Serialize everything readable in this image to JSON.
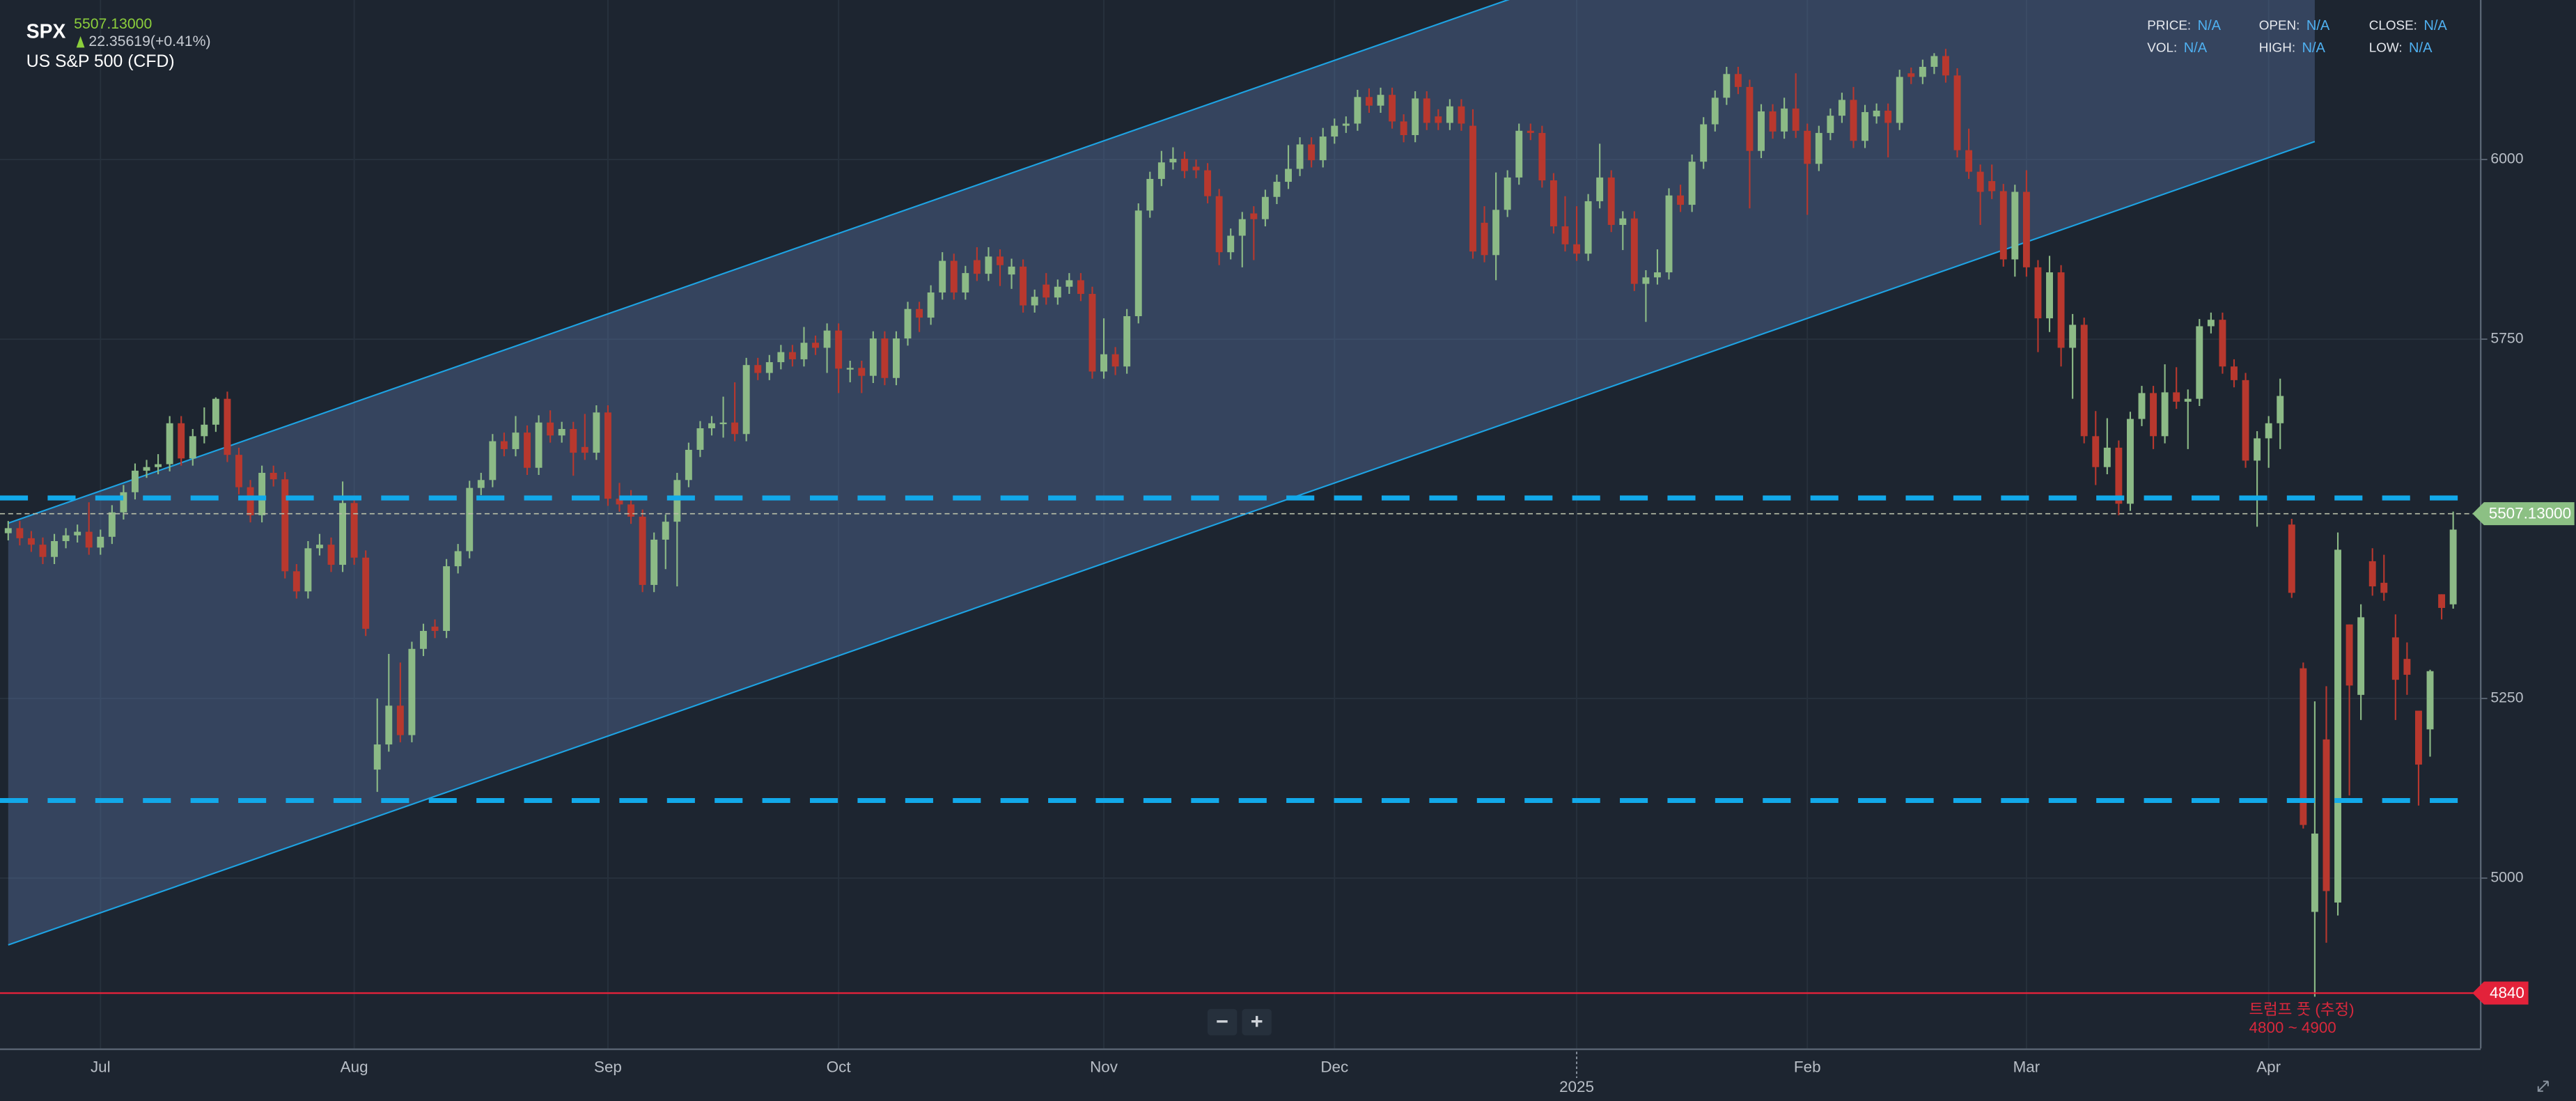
{
  "header": {
    "symbol": "SPX",
    "price": "5507.13000",
    "change": "22.35619(+0.41%)",
    "name": "US S&P 500 (CFD)"
  },
  "info": [
    {
      "label": "PRICE:",
      "value": "N/A"
    },
    {
      "label": "OPEN:",
      "value": "N/A"
    },
    {
      "label": "CLOSE:",
      "value": "N/A"
    },
    {
      "label": "VOL:",
      "value": "N/A"
    },
    {
      "label": "HIGH:",
      "value": "N/A"
    },
    {
      "label": "LOW:",
      "value": "N/A"
    }
  ],
  "zoom_controls": [
    "−",
    "+"
  ],
  "chart_data": {
    "type": "candlestick",
    "categories": [
      null,
      null,
      null,
      null,
      null,
      null,
      null,
      null,
      "Jul",
      null,
      null,
      null,
      null,
      null,
      null,
      null,
      null,
      null,
      null,
      null,
      null,
      null,
      null,
      null,
      null,
      null,
      null,
      null,
      null,
      null,
      "Aug",
      null,
      null,
      null,
      null,
      null,
      null,
      null,
      null,
      null,
      null,
      null,
      null,
      null,
      null,
      null,
      null,
      null,
      null,
      null,
      null,
      null,
      "Sep",
      null,
      null,
      null,
      null,
      null,
      null,
      null,
      null,
      null,
      null,
      null,
      null,
      null,
      null,
      null,
      null,
      null,
      null,
      null,
      "Oct",
      null,
      null,
      null,
      null,
      null,
      null,
      null,
      null,
      null,
      null,
      null,
      null,
      null,
      null,
      null,
      null,
      null,
      null,
      null,
      null,
      null,
      null,
      "Nov",
      null,
      null,
      null,
      null,
      null,
      null,
      null,
      null,
      null,
      null,
      null,
      null,
      null,
      null,
      null,
      null,
      null,
      null,
      null,
      "Dec",
      null,
      null,
      null,
      null,
      null,
      null,
      null,
      null,
      null,
      null,
      null,
      null,
      null,
      null,
      null,
      null,
      null,
      null,
      null,
      null,
      "2025",
      null,
      null,
      null,
      null,
      null,
      null,
      null,
      null,
      null,
      null,
      null,
      null,
      null,
      null,
      null,
      null,
      null,
      null,
      null,
      "Feb",
      null,
      null,
      null,
      null,
      null,
      null,
      null,
      null,
      null,
      null,
      null,
      null,
      null,
      null,
      null,
      null,
      null,
      null,
      "Mar",
      null,
      null,
      null,
      null,
      null,
      null,
      null,
      null,
      null,
      null,
      null,
      null,
      null,
      null,
      null,
      null,
      null,
      null,
      null,
      null,
      "Apr",
      null,
      null,
      null,
      null,
      null,
      null,
      null,
      null,
      null,
      null,
      null,
      null,
      null,
      null,
      null,
      null
    ],
    "open": [
      5480,
      5487,
      5473,
      5464,
      5447,
      5469,
      5477,
      5482,
      5460,
      5475,
      5509,
      5537,
      5567,
      5572,
      5576,
      5633,
      5584,
      5615,
      5631,
      5667,
      5589,
      5544,
      5505,
      5564,
      5555,
      5427,
      5399,
      5459,
      5464,
      5436,
      5522,
      5446,
      5151,
      5186,
      5240,
      5199,
      5319,
      5350,
      5344,
      5434,
      5455,
      5543,
      5554,
      5608,
      5597,
      5620,
      5571,
      5634,
      5616,
      5625,
      5600,
      5592,
      5648,
      5528,
      5520,
      5503,
      5408,
      5471,
      5496,
      5554,
      5596,
      5626,
      5633,
      5634,
      5618,
      5714,
      5703,
      5718,
      5732,
      5722,
      5745,
      5738,
      5762,
      5709,
      5710,
      5699,
      5751,
      5696,
      5751,
      5792,
      5780,
      5815,
      5859,
      5815,
      5860,
      5841,
      5865,
      5840,
      5851,
      5797,
      5826,
      5808,
      5823,
      5832,
      5813,
      5705,
      5729,
      5712,
      5782,
      5929,
      5973,
      5996,
      6001,
      5990,
      5985,
      5949,
      5871,
      5894,
      5925,
      5917,
      5948,
      5969,
      5987,
      6021,
      5999,
      6032,
      6047,
      6050,
      6087,
      6075,
      6090,
      6053,
      6034,
      6085,
      6060,
      6051,
      6074,
      6047,
      5912,
      5867,
      5930,
      5975,
      6040,
      6037,
      5971,
      5907,
      5882,
      5869,
      5942,
      5975,
      5909,
      5918,
      5827,
      5836,
      5843,
      5950,
      5937,
      5997,
      6049,
      6086,
      6119,
      6101,
      6012,
      6067,
      6039,
      6071,
      6040,
      5994,
      6037,
      6061,
      6083,
      6026,
      6060,
      6068,
      6051,
      6120,
      6115,
      6129,
      6144,
      6117,
      6013,
      5983,
      5970,
      5956,
      5861,
      5955,
      5850,
      5779,
      5843,
      5738,
      5770,
      5615,
      5572,
      5599,
      5521,
      5639,
      5675,
      5615,
      5676,
      5663,
      5667,
      5768,
      5777,
      5712,
      5693,
      5581,
      5612,
      5633,
      5492,
      5292,
      4953,
      5193,
      4966,
      5353,
      5255,
      5441,
      5411,
      5335,
      5305,
      5233,
      5207,
      5395,
      5381
    ],
    "high": [
      5497,
      5497,
      5483,
      5474,
      5479,
      5487,
      5492,
      5523,
      5485,
      5519,
      5547,
      5577,
      5582,
      5590,
      5643,
      5643,
      5625,
      5655,
      5669,
      5677,
      5599,
      5554,
      5574,
      5574,
      5565,
      5437,
      5469,
      5479,
      5474,
      5552,
      5532,
      5456,
      5250,
      5312,
      5300,
      5329,
      5354,
      5360,
      5444,
      5465,
      5553,
      5564,
      5618,
      5620,
      5643,
      5630,
      5644,
      5651,
      5635,
      5635,
      5646,
      5658,
      5658,
      5550,
      5540,
      5513,
      5481,
      5506,
      5564,
      5606,
      5636,
      5643,
      5670,
      5690,
      5724,
      5724,
      5728,
      5742,
      5742,
      5767,
      5755,
      5772,
      5772,
      5720,
      5720,
      5761,
      5761,
      5761,
      5802,
      5802,
      5825,
      5871,
      5869,
      5852,
      5878,
      5878,
      5875,
      5862,
      5861,
      5819,
      5842,
      5833,
      5842,
      5842,
      5823,
      5779,
      5739,
      5792,
      5939,
      5983,
      6012,
      6017,
      6011,
      6000,
      5995,
      5959,
      5904,
      5927,
      5935,
      5958,
      5979,
      6020,
      6031,
      6031,
      6044,
      6057,
      6060,
      6097,
      6099,
      6100,
      6100,
      6063,
      6095,
      6095,
      6070,
      6084,
      6084,
      6070,
      5935,
      5982,
      5985,
      6050,
      6050,
      6047,
      5981,
      5949,
      5935,
      5952,
      6022,
      5985,
      5928,
      5928,
      5846,
      5875,
      5960,
      5965,
      6007,
      6059,
      6096,
      6129,
      6129,
      6111,
      6077,
      6077,
      6086,
      6120,
      6050,
      6047,
      6071,
      6093,
      6101,
      6076,
      6078,
      6078,
      6125,
      6128,
      6139,
      6148,
      6154,
      6127,
      6043,
      5993,
      5993,
      5966,
      5965,
      5985,
      5860,
      5866,
      5853,
      5785,
      5780,
      5650,
      5640,
      5609,
      5649,
      5685,
      5685,
      5715,
      5711,
      5680,
      5778,
      5787,
      5787,
      5722,
      5703,
      5622,
      5643,
      5695,
      5500,
      5300,
      5246,
      5267,
      5481,
      5353,
      5381,
      5459,
      5450,
      5367,
      5328,
      5233,
      5290,
      5395,
      5510
    ],
    "low": [
      5470,
      5463,
      5454,
      5437,
      5437,
      5459,
      5467,
      5450,
      5450,
      5465,
      5499,
      5527,
      5557,
      5562,
      5566,
      5574,
      5574,
      5605,
      5621,
      5579,
      5534,
      5495,
      5495,
      5545,
      5417,
      5389,
      5389,
      5449,
      5426,
      5426,
      5436,
      5337,
      5120,
      5176,
      5189,
      5189,
      5309,
      5334,
      5334,
      5424,
      5445,
      5533,
      5544,
      5587,
      5587,
      5561,
      5561,
      5606,
      5606,
      5560,
      5582,
      5582,
      5518,
      5510,
      5493,
      5398,
      5398,
      5430,
      5406,
      5544,
      5586,
      5616,
      5613,
      5608,
      5608,
      5693,
      5693,
      5708,
      5712,
      5712,
      5728,
      5703,
      5675,
      5690,
      5675,
      5689,
      5686,
      5686,
      5741,
      5760,
      5770,
      5805,
      5805,
      5805,
      5831,
      5831,
      5824,
      5820,
      5787,
      5787,
      5798,
      5798,
      5813,
      5803,
      5695,
      5695,
      5700,
      5702,
      5772,
      5919,
      5963,
      5986,
      5974,
      5974,
      5939,
      5853,
      5861,
      5850,
      5860,
      5907,
      5938,
      5959,
      5977,
      5989,
      5989,
      6022,
      6037,
      6040,
      6065,
      6065,
      6043,
      6024,
      6024,
      6041,
      6041,
      6041,
      6040,
      5862,
      5857,
      5832,
      5920,
      5965,
      6027,
      5961,
      5897,
      5872,
      5859,
      5859,
      5932,
      5899,
      5874,
      5817,
      5774,
      5826,
      5833,
      5927,
      5927,
      5987,
      6039,
      6076,
      6091,
      5932,
      6002,
      6029,
      6029,
      6030,
      5923,
      5984,
      6027,
      6051,
      6016,
      6016,
      6050,
      6003,
      6041,
      6105,
      6105,
      6119,
      6107,
      6003,
      5973,
      5909,
      5945,
      5851,
      5837,
      5837,
      5732,
      5760,
      5712,
      5667,
      5605,
      5547,
      5562,
      5505,
      5511,
      5629,
      5597,
      5605,
      5653,
      5597,
      5657,
      5758,
      5702,
      5683,
      5571,
      5489,
      5571,
      5597,
      5390,
      5069,
      4835,
      4910,
      4948,
      5115,
      5220,
      5393,
      5386,
      5220,
      5255,
      5101,
      5169,
      5360,
      5375
    ],
    "close": [
      5487,
      5473,
      5464,
      5447,
      5469,
      5477,
      5482,
      5460,
      5475,
      5509,
      5537,
      5567,
      5572,
      5576,
      5633,
      5584,
      5615,
      5631,
      5667,
      5589,
      5544,
      5505,
      5564,
      5555,
      5427,
      5399,
      5459,
      5464,
      5436,
      5522,
      5446,
      5347,
      5186,
      5240,
      5199,
      5319,
      5344,
      5344,
      5434,
      5455,
      5543,
      5554,
      5608,
      5597,
      5620,
      5571,
      5634,
      5616,
      5625,
      5592,
      5592,
      5648,
      5528,
      5520,
      5503,
      5408,
      5471,
      5496,
      5554,
      5596,
      5626,
      5633,
      5634,
      5618,
      5714,
      5703,
      5718,
      5732,
      5722,
      5745,
      5738,
      5762,
      5709,
      5710,
      5699,
      5751,
      5696,
      5751,
      5792,
      5780,
      5815,
      5859,
      5815,
      5842,
      5841,
      5865,
      5853,
      5851,
      5797,
      5809,
      5808,
      5823,
      5832,
      5813,
      5705,
      5729,
      5712,
      5782,
      5929,
      5973,
      5996,
      6001,
      5984,
      5985,
      5949,
      5871,
      5894,
      5917,
      5917,
      5948,
      5969,
      5987,
      6021,
      5999,
      6032,
      6047,
      6050,
      6087,
      6075,
      6090,
      6053,
      6034,
      6085,
      6051,
      6051,
      6074,
      6050,
      5872,
      5867,
      5930,
      5975,
      6040,
      6037,
      5971,
      5907,
      5882,
      5869,
      5942,
      5975,
      5909,
      5918,
      5827,
      5836,
      5843,
      5950,
      5937,
      5997,
      6049,
      6086,
      6119,
      6101,
      6012,
      6067,
      6039,
      6071,
      6040,
      5994,
      6037,
      6061,
      6083,
      6026,
      6066,
      6068,
      6051,
      6115,
      6115,
      6129,
      6144,
      6117,
      6013,
      5983,
      5955,
      5956,
      5861,
      5955,
      5850,
      5779,
      5843,
      5738,
      5770,
      5615,
      5572,
      5599,
      5521,
      5639,
      5675,
      5615,
      5676,
      5663,
      5667,
      5768,
      5777,
      5712,
      5693,
      5581,
      5612,
      5633,
      5671,
      5397,
      5074,
      5062,
      4982,
      5457,
      5268,
      5363,
      5406,
      5397,
      5276,
      5283,
      5158,
      5288,
      5376,
      5485
    ],
    "up_color": "#8cba86",
    "down_color": "#b8382e",
    "ylim": [
      4763,
      6222
    ],
    "yticks": [
      5000,
      5250,
      5750,
      6000
    ],
    "grid": true,
    "channel": {
      "x": [
        0,
        200
      ],
      "upper": [
        5494,
        6614
      ],
      "lower": [
        4907,
        6025
      ],
      "color": "#1ea3e3"
    },
    "hlines": [
      {
        "value": 5529,
        "color": "#12a9ea",
        "style": "dashed"
      },
      {
        "value": 5108,
        "color": "#12a9ea",
        "style": "dashed"
      },
      {
        "value": 4840,
        "label": "4840",
        "color": "#e3223a",
        "style": "solid"
      }
    ],
    "last_price": {
      "value": 5507.13,
      "label": "5507.13000",
      "color": "#8cc084"
    },
    "annotation": [
      "트럼프 풋 (추정)",
      "4800 ~ 4900"
    ],
    "annotation_color": "#d8283c"
  }
}
